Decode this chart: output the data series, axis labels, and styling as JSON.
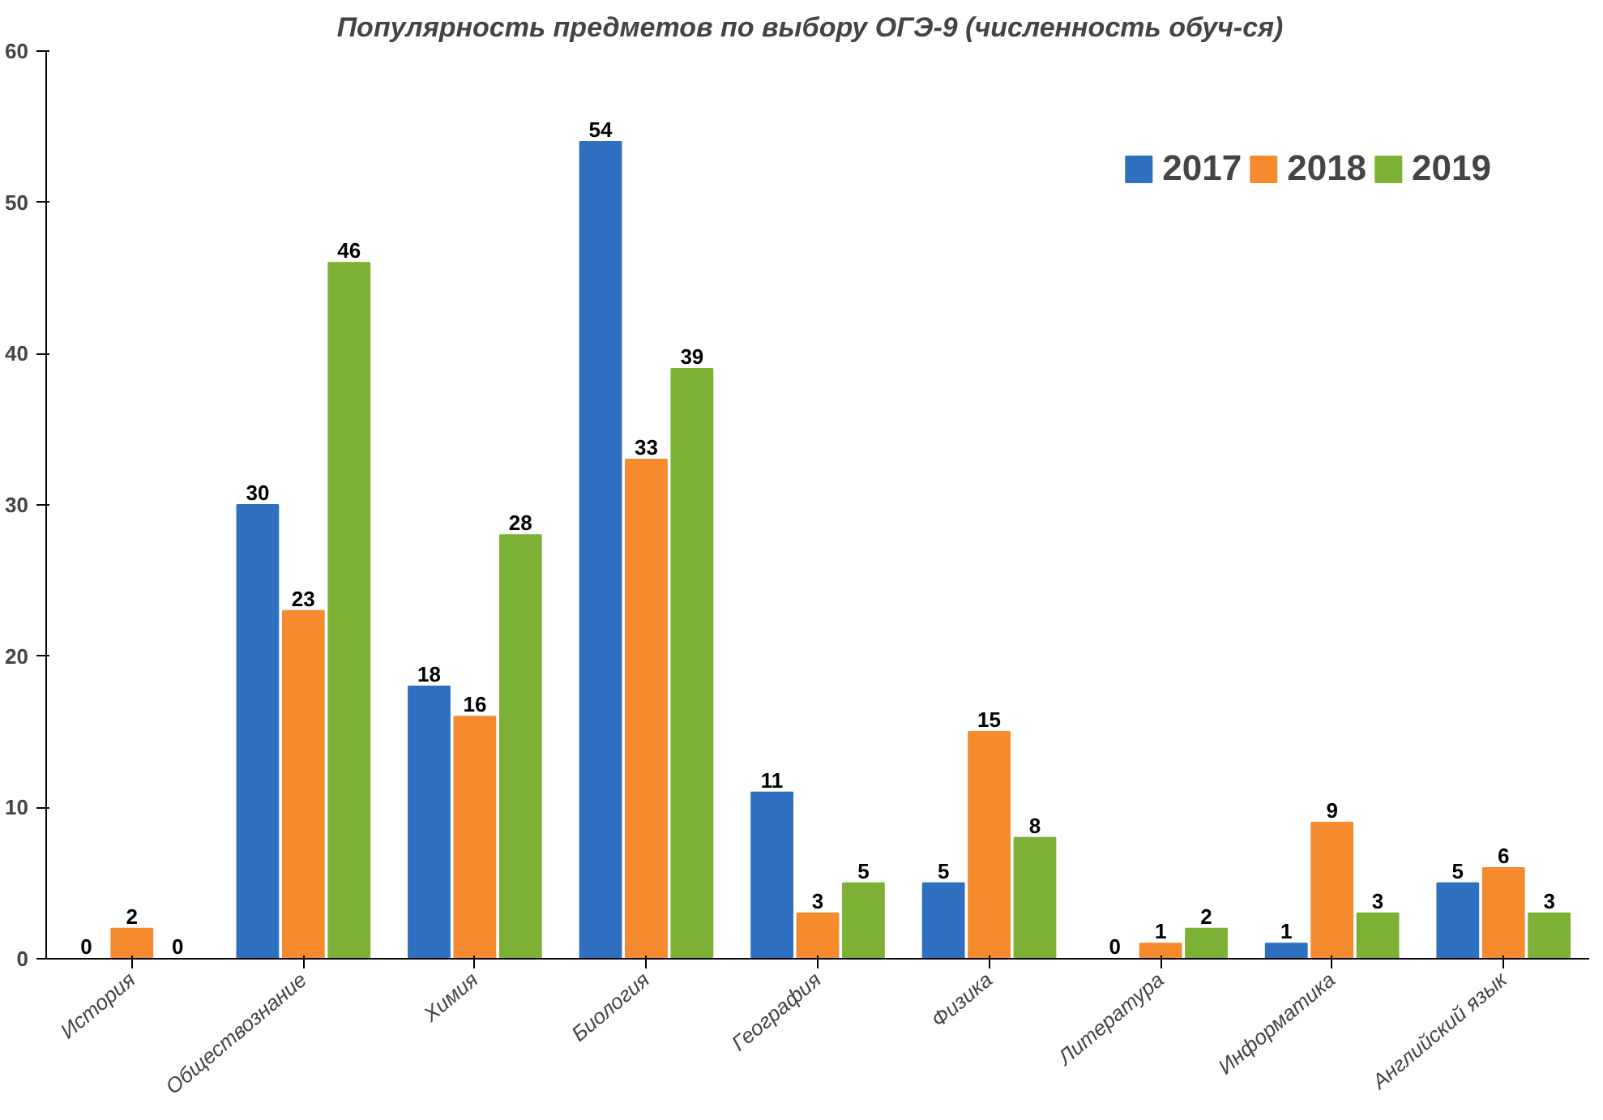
{
  "chart_data": {
    "type": "bar",
    "title": "Популярность предметов по выбору ОГЭ-9   (численность обуч-ся)",
    "categories": [
      "История",
      "Обществознание",
      "Химия",
      "Биология",
      "География",
      "Физика",
      "Литература",
      "Информатика",
      "Английский язык"
    ],
    "series": [
      {
        "name": "2017",
        "color": "#2e6fc0",
        "values": [
          0,
          30,
          18,
          54,
          11,
          5,
          0,
          1,
          5
        ]
      },
      {
        "name": "2018",
        "color": "#f58a2e",
        "values": [
          2,
          23,
          16,
          33,
          3,
          15,
          1,
          9,
          6
        ]
      },
      {
        "name": "2019",
        "color": "#7cb135",
        "values": [
          0,
          46,
          28,
          39,
          5,
          8,
          2,
          3,
          3
        ]
      }
    ],
    "ylim": [
      0,
      60
    ],
    "yticks": [
      0,
      10,
      20,
      30,
      40,
      50,
      60
    ],
    "grid": false,
    "legend": "top right",
    "data_labels": true
  }
}
